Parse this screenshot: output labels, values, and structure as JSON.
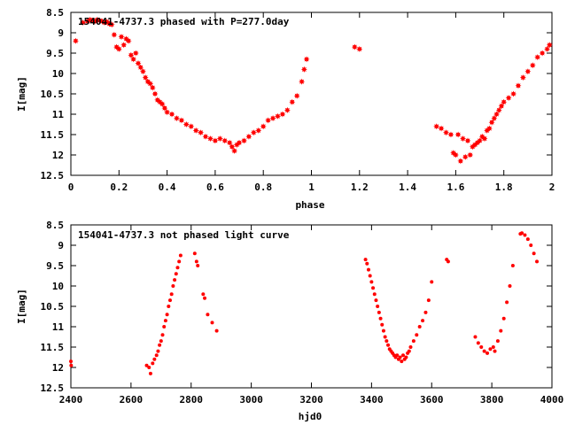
{
  "chart_data": [
    {
      "type": "scatter",
      "title": "154041-4737.3 phased with P=277.0day",
      "xlabel": "phase",
      "ylabel": "I[mag]",
      "xlim": [
        0,
        2
      ],
      "ylim": [
        12.5,
        8.5
      ],
      "y_inverted": true,
      "xticks": [
        "0",
        "0.2",
        "0.4",
        "0.6",
        "0.8",
        "1",
        "1.2",
        "1.4",
        "1.6",
        "1.8",
        "2"
      ],
      "yticks": [
        "8.5",
        "9",
        "9.5",
        "10",
        "10.5",
        "11",
        "11.5",
        "12",
        "12.5"
      ],
      "marker_color": "#ff0000",
      "marker": "star",
      "points": [
        [
          0.02,
          9.2
        ],
        [
          0.05,
          8.75
        ],
        [
          0.07,
          8.72
        ],
        [
          0.08,
          8.68
        ],
        [
          0.09,
          8.7
        ],
        [
          0.1,
          8.72
        ],
        [
          0.11,
          8.68
        ],
        [
          0.12,
          8.7
        ],
        [
          0.13,
          8.72
        ],
        [
          0.14,
          8.75
        ],
        [
          0.15,
          8.73
        ],
        [
          0.16,
          8.78
        ],
        [
          0.17,
          8.8
        ],
        [
          0.18,
          9.05
        ],
        [
          0.19,
          9.35
        ],
        [
          0.2,
          9.4
        ],
        [
          0.21,
          9.1
        ],
        [
          0.22,
          9.3
        ],
        [
          0.23,
          9.15
        ],
        [
          0.24,
          9.2
        ],
        [
          0.25,
          9.55
        ],
        [
          0.26,
          9.65
        ],
        [
          0.27,
          9.5
        ],
        [
          0.28,
          9.75
        ],
        [
          0.29,
          9.85
        ],
        [
          0.3,
          9.95
        ],
        [
          0.31,
          10.1
        ],
        [
          0.32,
          10.2
        ],
        [
          0.33,
          10.25
        ],
        [
          0.34,
          10.35
        ],
        [
          0.35,
          10.5
        ],
        [
          0.36,
          10.65
        ],
        [
          0.37,
          10.7
        ],
        [
          0.38,
          10.75
        ],
        [
          0.39,
          10.85
        ],
        [
          0.4,
          10.95
        ],
        [
          0.42,
          11.0
        ],
        [
          0.44,
          11.1
        ],
        [
          0.46,
          11.15
        ],
        [
          0.48,
          11.25
        ],
        [
          0.5,
          11.3
        ],
        [
          0.52,
          11.4
        ],
        [
          0.54,
          11.45
        ],
        [
          0.56,
          11.55
        ],
        [
          0.58,
          11.6
        ],
        [
          0.6,
          11.65
        ],
        [
          0.62,
          11.6
        ],
        [
          0.64,
          11.65
        ],
        [
          0.66,
          11.7
        ],
        [
          0.67,
          11.8
        ],
        [
          0.68,
          11.9
        ],
        [
          0.69,
          11.75
        ],
        [
          0.7,
          11.7
        ],
        [
          0.72,
          11.65
        ],
        [
          0.74,
          11.55
        ],
        [
          0.76,
          11.45
        ],
        [
          0.78,
          11.4
        ],
        [
          0.8,
          11.3
        ],
        [
          0.82,
          11.15
        ],
        [
          0.84,
          11.1
        ],
        [
          0.86,
          11.05
        ],
        [
          0.88,
          11.0
        ],
        [
          0.9,
          10.9
        ],
        [
          0.92,
          10.7
        ],
        [
          0.94,
          10.55
        ],
        [
          0.96,
          10.2
        ],
        [
          0.97,
          9.9
        ],
        [
          0.98,
          9.65
        ],
        [
          1.18,
          9.35
        ],
        [
          1.2,
          9.4
        ],
        [
          1.52,
          11.3
        ],
        [
          1.54,
          11.35
        ],
        [
          1.56,
          11.45
        ],
        [
          1.58,
          11.5
        ],
        [
          1.59,
          11.95
        ],
        [
          1.6,
          12.0
        ],
        [
          1.61,
          11.5
        ],
        [
          1.62,
          12.15
        ],
        [
          1.63,
          11.6
        ],
        [
          1.64,
          12.05
        ],
        [
          1.65,
          11.65
        ],
        [
          1.66,
          12.0
        ],
        [
          1.67,
          11.8
        ],
        [
          1.68,
          11.75
        ],
        [
          1.69,
          11.7
        ],
        [
          1.7,
          11.65
        ],
        [
          1.71,
          11.55
        ],
        [
          1.72,
          11.6
        ],
        [
          1.73,
          11.4
        ],
        [
          1.74,
          11.35
        ],
        [
          1.75,
          11.2
        ],
        [
          1.76,
          11.1
        ],
        [
          1.77,
          11.0
        ],
        [
          1.78,
          10.9
        ],
        [
          1.79,
          10.8
        ],
        [
          1.8,
          10.7
        ],
        [
          1.82,
          10.6
        ],
        [
          1.84,
          10.5
        ],
        [
          1.86,
          10.3
        ],
        [
          1.88,
          10.1
        ],
        [
          1.9,
          9.95
        ],
        [
          1.92,
          9.8
        ],
        [
          1.94,
          9.6
        ],
        [
          1.96,
          9.5
        ],
        [
          1.98,
          9.4
        ],
        [
          1.99,
          9.3
        ]
      ]
    },
    {
      "type": "scatter",
      "title": "154041-4737.3 not phased light curve",
      "xlabel": "hjd0",
      "ylabel": "I[mag]",
      "xlim": [
        2400,
        4000
      ],
      "ylim": [
        12.5,
        8.5
      ],
      "y_inverted": true,
      "xticks": [
        "2400",
        "2600",
        "2800",
        "3000",
        "3200",
        "3400",
        "3600",
        "3800",
        "4000"
      ],
      "yticks": [
        "8.5",
        "9",
        "9.5",
        "10",
        "10.5",
        "11",
        "11.5",
        "12",
        "12.5"
      ],
      "marker_color": "#ff0000",
      "marker": "dot",
      "points": [
        [
          2400,
          11.85
        ],
        [
          2401,
          11.95
        ],
        [
          2652,
          11.95
        ],
        [
          2660,
          12.0
        ],
        [
          2665,
          12.15
        ],
        [
          2672,
          11.9
        ],
        [
          2678,
          11.8
        ],
        [
          2685,
          11.7
        ],
        [
          2690,
          11.6
        ],
        [
          2695,
          11.45
        ],
        [
          2700,
          11.35
        ],
        [
          2705,
          11.2
        ],
        [
          2710,
          11.0
        ],
        [
          2715,
          10.85
        ],
        [
          2720,
          10.7
        ],
        [
          2725,
          10.5
        ],
        [
          2730,
          10.35
        ],
        [
          2735,
          10.2
        ],
        [
          2740,
          10.0
        ],
        [
          2745,
          9.85
        ],
        [
          2750,
          9.7
        ],
        [
          2755,
          9.55
        ],
        [
          2760,
          9.4
        ],
        [
          2765,
          9.25
        ],
        [
          2812,
          9.2
        ],
        [
          2818,
          9.4
        ],
        [
          2822,
          9.5
        ],
        [
          2840,
          10.2
        ],
        [
          2845,
          10.3
        ],
        [
          2855,
          10.7
        ],
        [
          2870,
          10.9
        ],
        [
          2885,
          11.1
        ],
        [
          3380,
          9.35
        ],
        [
          3385,
          9.45
        ],
        [
          3390,
          9.6
        ],
        [
          3395,
          9.75
        ],
        [
          3400,
          9.9
        ],
        [
          3405,
          10.05
        ],
        [
          3410,
          10.2
        ],
        [
          3415,
          10.35
        ],
        [
          3420,
          10.5
        ],
        [
          3425,
          10.65
        ],
        [
          3430,
          10.8
        ],
        [
          3435,
          10.95
        ],
        [
          3440,
          11.1
        ],
        [
          3445,
          11.25
        ],
        [
          3450,
          11.35
        ],
        [
          3455,
          11.45
        ],
        [
          3460,
          11.55
        ],
        [
          3465,
          11.6
        ],
        [
          3470,
          11.65
        ],
        [
          3475,
          11.7
        ],
        [
          3480,
          11.75
        ],
        [
          3485,
          11.7
        ],
        [
          3490,
          11.8
        ],
        [
          3495,
          11.75
        ],
        [
          3500,
          11.85
        ],
        [
          3505,
          11.7
        ],
        [
          3510,
          11.8
        ],
        [
          3515,
          11.75
        ],
        [
          3520,
          11.65
        ],
        [
          3525,
          11.6
        ],
        [
          3530,
          11.5
        ],
        [
          3540,
          11.35
        ],
        [
          3550,
          11.2
        ],
        [
          3560,
          11.0
        ],
        [
          3570,
          10.85
        ],
        [
          3580,
          10.65
        ],
        [
          3590,
          10.35
        ],
        [
          3600,
          9.9
        ],
        [
          3650,
          9.35
        ],
        [
          3655,
          9.4
        ],
        [
          3745,
          11.25
        ],
        [
          3755,
          11.4
        ],
        [
          3765,
          11.5
        ],
        [
          3775,
          11.6
        ],
        [
          3785,
          11.65
        ],
        [
          3795,
          11.55
        ],
        [
          3805,
          11.5
        ],
        [
          3810,
          11.6
        ],
        [
          3820,
          11.35
        ],
        [
          3830,
          11.1
        ],
        [
          3840,
          10.8
        ],
        [
          3850,
          10.4
        ],
        [
          3860,
          10.0
        ],
        [
          3870,
          9.5
        ],
        [
          3895,
          8.72
        ],
        [
          3900,
          8.7
        ],
        [
          3910,
          8.75
        ],
        [
          3920,
          8.85
        ],
        [
          3930,
          9.0
        ],
        [
          3940,
          9.2
        ],
        [
          3950,
          9.4
        ]
      ]
    }
  ]
}
